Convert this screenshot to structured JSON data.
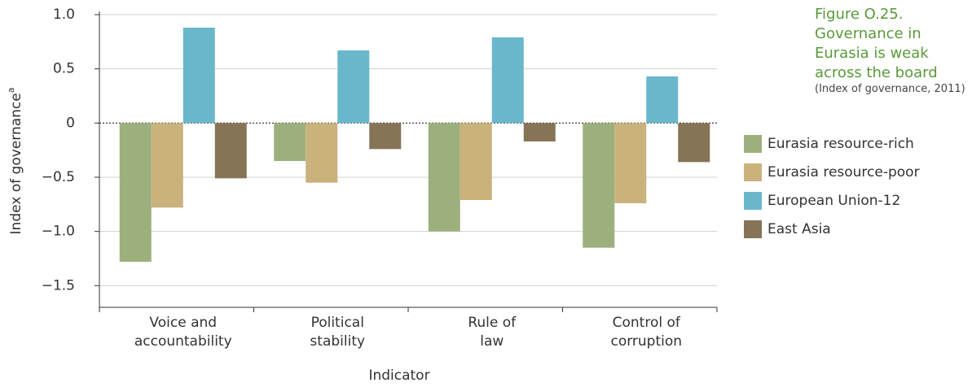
{
  "chart_data": {
    "type": "bar",
    "title": "Figure O.25. Governance in Eurasia is weak across the board",
    "subtitle": "(Index of governance, 2011)",
    "ylabel": "Index of governance",
    "ylabel_note": "a",
    "xlabel": "Indicator",
    "categories": [
      "Voice and\naccountability",
      "Political\nstability",
      "Rule of\nlaw",
      "Control of\ncorruption"
    ],
    "series": [
      {
        "name": "Eurasia resource-rich",
        "color": "#9cb07e",
        "values": [
          -1.28,
          -0.35,
          -1.0,
          -1.15
        ]
      },
      {
        "name": "Eurasia resource-poor",
        "color": "#c9b27b",
        "values": [
          -0.78,
          -0.55,
          -0.71,
          -0.74
        ]
      },
      {
        "name": "European Union-12",
        "color": "#6ab7cc",
        "values": [
          0.88,
          0.67,
          0.79,
          0.43
        ]
      },
      {
        "name": "East Asia",
        "color": "#857456",
        "values": [
          -0.51,
          -0.24,
          -0.17,
          -0.36
        ]
      }
    ],
    "ylim": [
      -1.7,
      1.0
    ],
    "yticks": [
      {
        "value": 1,
        "label": "1.0"
      },
      0.5,
      0,
      {
        "value": -0.5,
        "label": "−0.5"
      },
      {
        "value": -1,
        "label": "−1.0"
      },
      {
        "value": -1.5,
        "label": "−1.5"
      }
    ],
    "grid": true,
    "legend": "right"
  }
}
